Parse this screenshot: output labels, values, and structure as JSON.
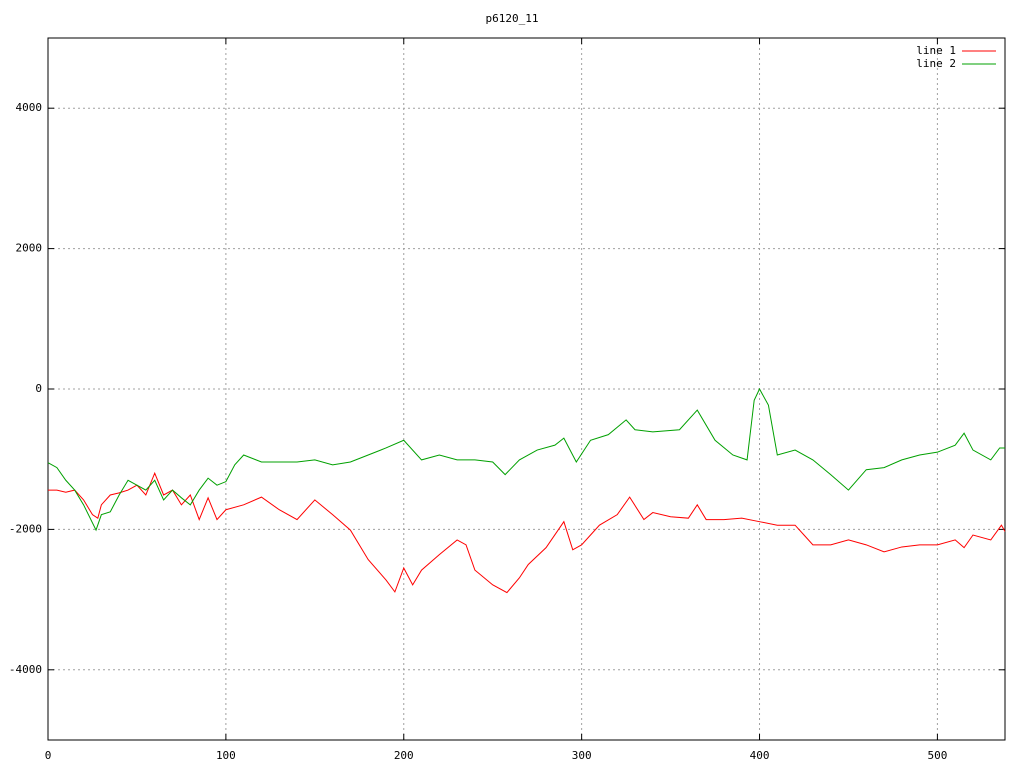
{
  "chart_data": {
    "type": "line",
    "title": "p6120_11",
    "xlim": [
      0,
      538
    ],
    "xticks": [
      0,
      100,
      200,
      300,
      400,
      500
    ],
    "ylim": [
      -5000,
      5000
    ],
    "yticks": [
      -4000,
      -2000,
      0,
      2000,
      4000
    ],
    "grid": true,
    "legend": "top-right",
    "series": [
      {
        "name": "line 1",
        "color": "#ff0000",
        "x": [
          0,
          5,
          10,
          15,
          20,
          25,
          28,
          30,
          35,
          40,
          45,
          50,
          55,
          60,
          65,
          70,
          75,
          80,
          85,
          90,
          95,
          100,
          110,
          120,
          130,
          140,
          150,
          160,
          170,
          180,
          190,
          195,
          200,
          205,
          210,
          220,
          230,
          235,
          240,
          250,
          258,
          265,
          270,
          280,
          290,
          295,
          300,
          305,
          310,
          320,
          327,
          335,
          340,
          350,
          360,
          365,
          370,
          380,
          390,
          400,
          410,
          420,
          425,
          430,
          440,
          450,
          460,
          470,
          480,
          490,
          500,
          510,
          515,
          520,
          530,
          536,
          538
        ],
        "values": [
          -1440,
          -1440,
          -1470,
          -1440,
          -1580,
          -1790,
          -1840,
          -1650,
          -1510,
          -1480,
          -1440,
          -1370,
          -1510,
          -1200,
          -1510,
          -1440,
          -1650,
          -1510,
          -1860,
          -1550,
          -1860,
          -1720,
          -1650,
          -1540,
          -1720,
          -1860,
          -1580,
          -1790,
          -2010,
          -2430,
          -2720,
          -2890,
          -2550,
          -2790,
          -2580,
          -2360,
          -2150,
          -2220,
          -2580,
          -2790,
          -2900,
          -2690,
          -2500,
          -2260,
          -1890,
          -2290,
          -2220,
          -2080,
          -1940,
          -1790,
          -1540,
          -1860,
          -1760,
          -1820,
          -1840,
          -1650,
          -1860,
          -1860,
          -1840,
          -1890,
          -1940,
          -1940,
          -2080,
          -2220,
          -2220,
          -2150,
          -2220,
          -2320,
          -2250,
          -2220,
          -2220,
          -2150,
          -2260,
          -2080,
          -2150,
          -1940,
          -2030
        ]
      },
      {
        "name": "line 2",
        "color": "#00a000",
        "x": [
          0,
          5,
          10,
          15,
          20,
          27,
          30,
          35,
          40,
          45,
          50,
          55,
          60,
          65,
          70,
          75,
          80,
          85,
          90,
          95,
          100,
          105,
          110,
          120,
          130,
          140,
          150,
          160,
          170,
          180,
          190,
          200,
          210,
          220,
          230,
          240,
          250,
          257,
          265,
          275,
          285,
          290,
          297,
          305,
          315,
          325,
          330,
          340,
          355,
          365,
          375,
          385,
          393,
          397,
          400,
          405,
          410,
          420,
          430,
          440,
          450,
          460,
          470,
          480,
          490,
          500,
          510,
          515,
          520,
          530,
          535,
          538
        ],
        "values": [
          -1050,
          -1120,
          -1300,
          -1440,
          -1650,
          -2010,
          -1790,
          -1750,
          -1510,
          -1300,
          -1370,
          -1440,
          -1300,
          -1580,
          -1440,
          -1550,
          -1650,
          -1440,
          -1270,
          -1370,
          -1320,
          -1080,
          -940,
          -1040,
          -1040,
          -1040,
          -1010,
          -1080,
          -1040,
          -940,
          -840,
          -730,
          -1010,
          -940,
          -1010,
          -1010,
          -1040,
          -1220,
          -1010,
          -870,
          -800,
          -700,
          -1040,
          -730,
          -650,
          -440,
          -580,
          -610,
          -580,
          -300,
          -730,
          -940,
          -1010,
          -160,
          0,
          -230,
          -940,
          -870,
          -1010,
          -1220,
          -1440,
          -1150,
          -1120,
          -1010,
          -940,
          -900,
          -800,
          -630,
          -870,
          -1010,
          -840,
          -840
        ]
      }
    ]
  }
}
